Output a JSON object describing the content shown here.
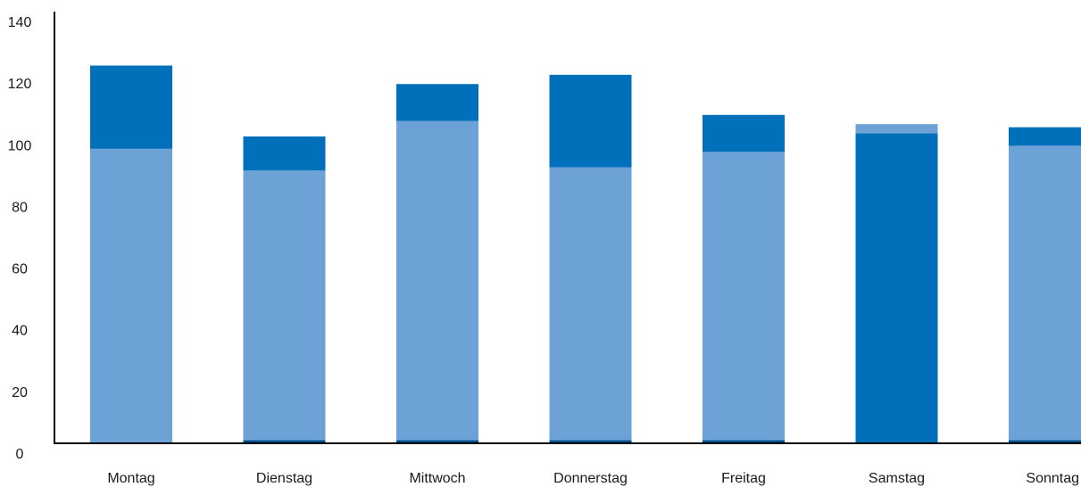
{
  "chart_data": {
    "type": "bar",
    "stacked": true,
    "title": "",
    "xlabel": "",
    "ylabel": "",
    "ylim": [
      0,
      140
    ],
    "yticks": [
      0,
      20,
      40,
      60,
      80,
      100,
      120,
      140
    ],
    "grid": false,
    "legend": "none",
    "categories": [
      "Montag",
      "Dienstag",
      "Mittwoch",
      "Donnerstag",
      "Freitag",
      "Samstag",
      "Sonntag"
    ],
    "series": [
      {
        "color": "#004f8a",
        "values": [
          0,
          1,
          1,
          1,
          1,
          0,
          1
        ]
      },
      {
        "color": "#6ca2d5",
        "values": [
          95.5,
          87.5,
          103.5,
          88.5,
          93.5,
          0,
          95.5
        ]
      },
      {
        "color": "#0070bb",
        "values": [
          27,
          11,
          12,
          30,
          12,
          100.5,
          6
        ]
      },
      {
        "color": "#6ca2d5",
        "values": [
          0,
          0,
          0,
          0,
          0,
          3,
          0
        ]
      }
    ]
  }
}
